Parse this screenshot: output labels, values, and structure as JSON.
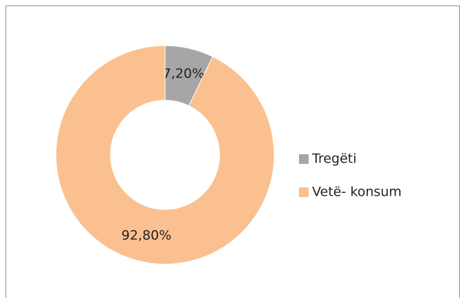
{
  "chart_data": {
    "type": "donut",
    "categories": [
      "Tregëti",
      "Vetë- konsum"
    ],
    "values": [
      7.2,
      92.8
    ],
    "value_labels": [
      "7,20%",
      "92,80%"
    ],
    "colors": [
      "#a6a6a6",
      "#fac090"
    ],
    "legend": "right"
  }
}
